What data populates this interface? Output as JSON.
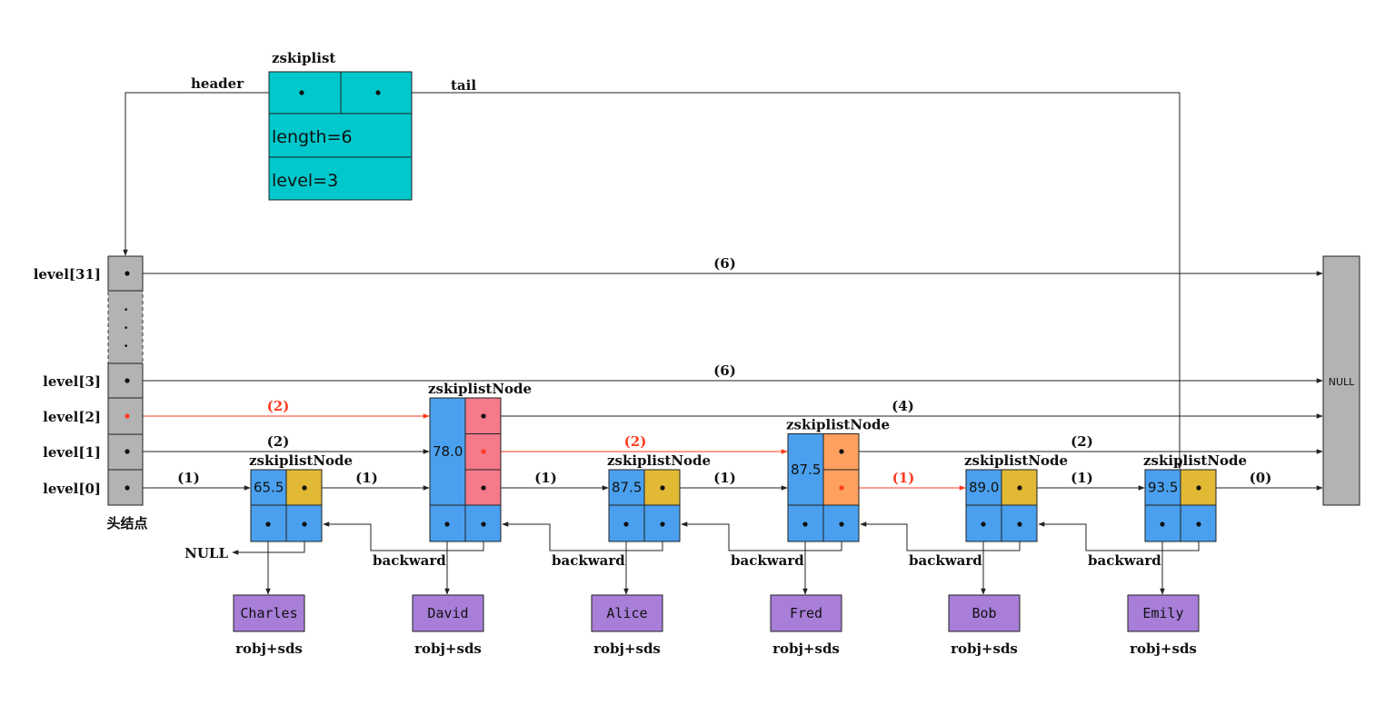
{
  "zskiplist": {
    "title": "zskiplist",
    "header_label": "header",
    "tail_label": "tail",
    "length_text": "length=6",
    "level_text": "level=3",
    "color": "#00C8CC"
  },
  "head": {
    "caption": "头结点",
    "levels": [
      "level[31]",
      "level[3]",
      "level[2]",
      "level[1]",
      "level[0]"
    ],
    "ellipsis": ".",
    "color": "#B3B3B3"
  },
  "null_box": {
    "label": "NULL"
  },
  "null_backward_label": "NULL",
  "node_title": "zskiplistNode",
  "backward_label": "backward",
  "obj_caption": "robj+sds",
  "colors": {
    "score": "#4AA0EE",
    "level_one": "#E2B935",
    "level_pink": "#F57A8A",
    "level_orange": "#FFA05E",
    "object": "#A87ED8",
    "highlight": "#FF3B1F",
    "line": "#222222"
  },
  "nodes": [
    {
      "score": "65.5",
      "object": "Charles",
      "levels": 1,
      "level_color": "level_one"
    },
    {
      "score": "78.0",
      "object": "David",
      "levels": 3,
      "level_color": "level_pink"
    },
    {
      "score": "87.5",
      "object": "Alice",
      "levels": 1,
      "level_color": "level_one"
    },
    {
      "score": "87.5",
      "object": "Fred",
      "levels": 2,
      "level_color": "level_orange"
    },
    {
      "score": "89.0",
      "object": "Bob",
      "levels": 1,
      "level_color": "level_one"
    },
    {
      "score": "93.5",
      "object": "Emily",
      "levels": 1,
      "level_color": "level_one"
    }
  ],
  "edges": [
    {
      "level": 31,
      "from": "head",
      "to": "null",
      "span": "(6)",
      "highlight": false
    },
    {
      "level": 3,
      "from": "head",
      "to": "null",
      "span": "(6)",
      "highlight": false
    },
    {
      "level": 2,
      "from": "head",
      "to": 1,
      "span": "(2)",
      "highlight": true
    },
    {
      "level": 2,
      "from": 1,
      "to": "null",
      "span": "(4)",
      "highlight": false
    },
    {
      "level": 1,
      "from": "head",
      "to": 1,
      "span": "(2)",
      "highlight": false
    },
    {
      "level": 1,
      "from": 1,
      "to": 3,
      "span": "(2)",
      "highlight": true
    },
    {
      "level": 1,
      "from": 3,
      "to": "null",
      "span": "(2)",
      "highlight": false
    },
    {
      "level": 0,
      "from": "head",
      "to": 0,
      "span": "(1)",
      "highlight": false
    },
    {
      "level": 0,
      "from": 0,
      "to": 1,
      "span": "(1)",
      "highlight": false
    },
    {
      "level": 0,
      "from": 1,
      "to": 2,
      "span": "(1)",
      "highlight": false
    },
    {
      "level": 0,
      "from": 2,
      "to": 3,
      "span": "(1)",
      "highlight": false
    },
    {
      "level": 0,
      "from": 3,
      "to": 4,
      "span": "(1)",
      "highlight": true
    },
    {
      "level": 0,
      "from": 4,
      "to": 5,
      "span": "(1)",
      "highlight": false
    },
    {
      "level": 0,
      "from": 5,
      "to": "null",
      "span": "(0)",
      "highlight": false
    }
  ]
}
